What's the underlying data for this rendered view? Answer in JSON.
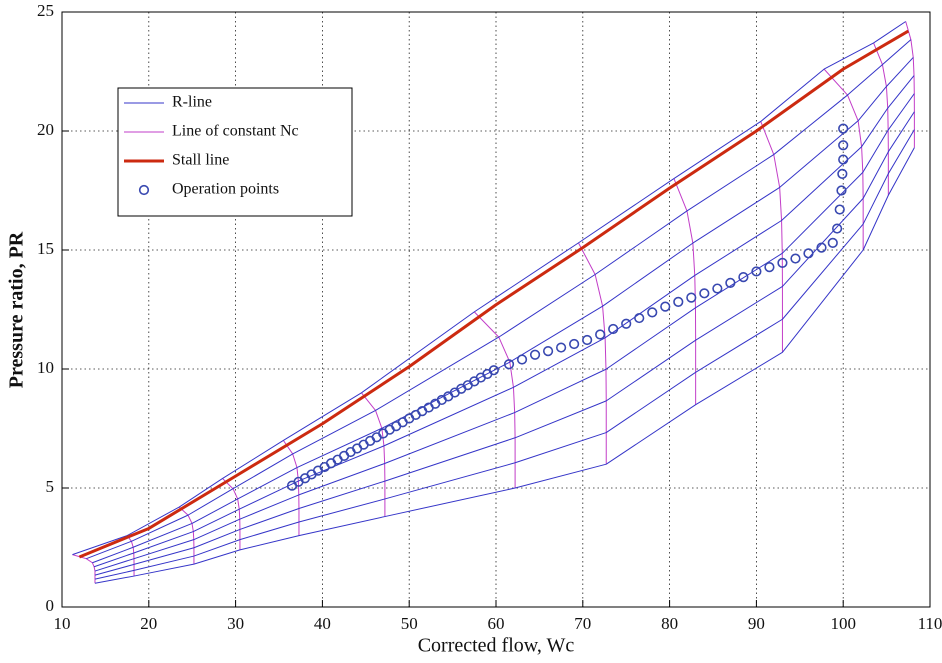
{
  "chart_data": {
    "type": "line",
    "xlabel": "Corrected flow, Wc",
    "ylabel": "Pressure ratio, PR",
    "xlim": [
      10,
      110
    ],
    "ylim": [
      0,
      25
    ],
    "xticks": [
      10,
      20,
      30,
      40,
      50,
      60,
      70,
      80,
      90,
      100,
      110
    ],
    "yticks": [
      0,
      5,
      10,
      15,
      20,
      25
    ],
    "grid": true,
    "legend": "upper left",
    "series": [
      {
        "name": "R-line",
        "color": "#3535c8"
      },
      {
        "name": "Line of constant Nc",
        "color": "#c23dc8",
        "lines": [
          {
            "x": [
              11.2,
              12.8,
              13.5,
              13.7,
              13.8,
              13.8,
              13.8,
              13.8
            ],
            "values": [
              2.2,
              2.03,
              1.86,
              1.69,
              1.51,
              1.34,
              1.17,
              1.0
            ]
          },
          {
            "x": [
              17.5,
              18.0,
              18.2,
              18.27,
              18.29,
              18.3,
              18.3,
              18.3
            ],
            "values": [
              3.0,
              2.76,
              2.51,
              2.27,
              2.03,
              1.79,
              1.54,
              1.3
            ]
          },
          {
            "x": [
              23.5,
              24.52,
              24.98,
              25.13,
              25.18,
              25.2,
              25.2,
              25.2
            ],
            "values": [
              4.2,
              3.86,
              3.51,
              3.17,
              2.83,
              2.49,
              2.14,
              1.8
            ]
          },
          {
            "x": [
              28.5,
              29.7,
              30.24,
              30.42,
              30.48,
              30.5,
              30.5,
              30.5
            ],
            "values": [
              5.4,
              4.97,
              4.54,
              4.11,
              3.69,
              3.26,
              2.83,
              2.4
            ]
          },
          {
            "x": [
              35.5,
              36.58,
              37.07,
              37.23,
              37.28,
              37.3,
              37.3,
              37.3
            ],
            "values": [
              7.0,
              6.43,
              5.86,
              5.29,
              4.71,
              4.14,
              3.57,
              3.0
            ]
          },
          {
            "x": [
              44.5,
              46.12,
              46.85,
              47.09,
              47.17,
              47.2,
              47.2,
              47.2
            ],
            "values": [
              9.0,
              8.26,
              7.51,
              6.77,
              6.03,
              5.29,
              4.54,
              3.8
            ]
          },
          {
            "x": [
              57.5,
              60.32,
              61.59,
              62.01,
              62.15,
              62.2,
              62.2,
              62.2
            ],
            "values": [
              12.4,
              11.34,
              10.29,
              9.23,
              8.17,
              7.11,
              6.06,
              5.0
            ]
          },
          {
            "x": [
              69.5,
              71.42,
              72.28,
              72.57,
              72.67,
              72.7,
              72.7,
              72.7
            ],
            "values": [
              15.3,
              13.97,
              12.64,
              11.31,
              9.99,
              8.66,
              7.33,
              6.0
            ]
          },
          {
            "x": [
              80.5,
              82.0,
              82.68,
              82.9,
              82.98,
              83.0,
              83.0,
              83.0
            ],
            "values": [
              18.0,
              16.64,
              15.29,
              13.93,
              12.57,
              11.21,
              9.86,
              8.5
            ]
          },
          {
            "x": [
              90.5,
              92.0,
              92.68,
              92.9,
              92.98,
              93.0,
              93.0,
              93.0
            ],
            "values": [
              20.4,
              19.01,
              17.63,
              16.24,
              14.86,
              13.47,
              12.09,
              10.7
            ]
          },
          {
            "x": [
              97.8,
              100.5,
              101.72,
              102.12,
              102.26,
              102.3,
              102.3,
              102.3
            ],
            "values": [
              22.6,
              21.51,
              20.43,
              19.34,
              18.26,
              17.17,
              16.09,
              15.0
            ]
          },
          {
            "x": [
              103.5,
              104.52,
              104.98,
              105.13,
              105.18,
              105.2,
              105.2,
              105.2
            ],
            "values": [
              23.7,
              22.79,
              21.87,
              20.96,
              20.04,
              19.13,
              18.21,
              17.3
            ]
          },
          {
            "x": [
              107.2,
              107.8,
              108.07,
              108.16,
              108.19,
              108.2,
              108.2,
              108.2
            ],
            "values": [
              24.6,
              23.84,
              23.09,
              22.33,
              21.57,
              20.81,
              20.06,
              19.3
            ]
          }
        ]
      },
      {
        "name": "Stall line",
        "color": "#cc2a10",
        "x": [
          12,
          20,
          30,
          40,
          50,
          60,
          70,
          80,
          90,
          100,
          107.5
        ],
        "values": [
          2.1,
          3.3,
          5.5,
          7.7,
          10.1,
          12.7,
          15.1,
          17.6,
          20.0,
          22.6,
          24.2
        ]
      },
      {
        "name": "Operation points",
        "color": "#3848b0",
        "marker": "circle",
        "x": [
          36.5,
          37.25,
          38.0,
          38.75,
          39.5,
          40.25,
          41.0,
          41.75,
          42.5,
          43.25,
          44.0,
          44.75,
          45.5,
          46.25,
          47.0,
          47.75,
          48.5,
          49.25,
          50.0,
          50.75,
          51.5,
          52.25,
          53.0,
          53.75,
          54.5,
          55.25,
          56.0,
          56.75,
          57.5,
          58.25,
          59.0,
          59.75,
          61.5,
          63,
          64.5,
          66,
          67.5,
          69,
          70.5,
          72,
          73.5,
          75,
          76.5,
          78,
          79.5,
          81,
          82.5,
          84,
          85.5,
          87,
          88.5,
          90,
          91.5,
          93,
          94.5,
          96,
          97.5,
          98.8,
          99.3,
          99.6,
          99.8,
          99.9,
          100,
          100,
          100
        ],
        "values": [
          5.1,
          5.26,
          5.41,
          5.57,
          5.73,
          5.88,
          6.04,
          6.19,
          6.35,
          6.51,
          6.66,
          6.82,
          6.98,
          7.13,
          7.29,
          7.45,
          7.6,
          7.76,
          7.92,
          8.07,
          8.23,
          8.38,
          8.54,
          8.7,
          8.85,
          9.01,
          9.17,
          9.32,
          9.48,
          9.64,
          9.79,
          9.95,
          10.2,
          10.4,
          10.6,
          10.75,
          10.9,
          11.05,
          11.22,
          11.45,
          11.68,
          11.9,
          12.14,
          12.38,
          12.62,
          12.82,
          13.0,
          13.18,
          13.38,
          13.62,
          13.86,
          14.1,
          14.28,
          14.46,
          14.64,
          14.86,
          15.1,
          15.3,
          15.9,
          16.7,
          17.5,
          18.2,
          18.8,
          19.4,
          20.1
        ]
      }
    ]
  }
}
